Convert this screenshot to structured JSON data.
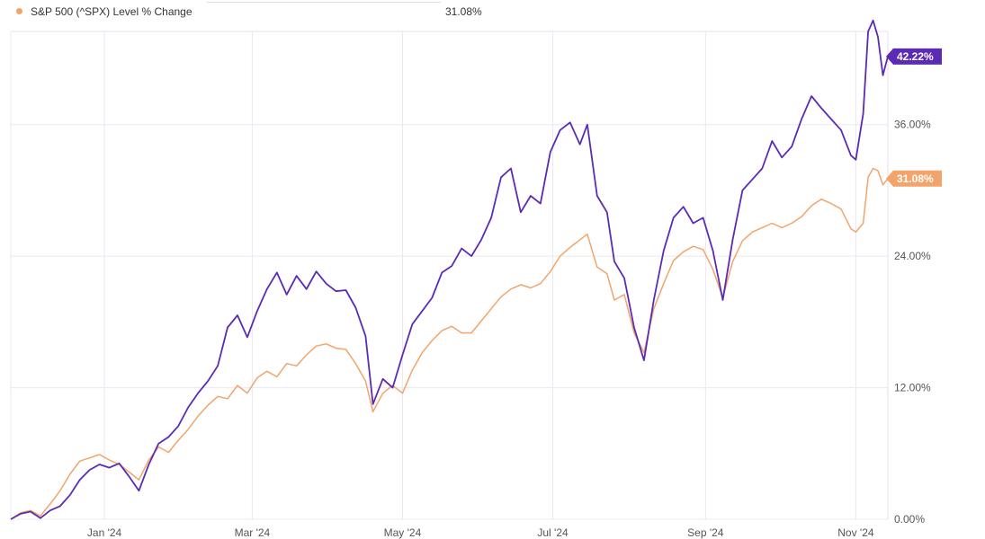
{
  "legend": {
    "label": "S&P 500 (^SPX) Level % Change",
    "value": "31.08%"
  },
  "chart_data": {
    "type": "line",
    "ylim": [
      0,
      44.5
    ],
    "y_ticks": [
      {
        "value": 0,
        "label": "0.00%"
      },
      {
        "value": 12,
        "label": "12.00%"
      },
      {
        "value": 24,
        "label": "24.00%"
      },
      {
        "value": 36,
        "label": "36.00%"
      }
    ],
    "x_range": [
      "2023-11-24",
      "2024-11-14"
    ],
    "x_ticks": [
      {
        "date": "2024-01-01",
        "label": "Jan '24"
      },
      {
        "date": "2024-03-01",
        "label": "Mar '24"
      },
      {
        "date": "2024-05-01",
        "label": "May '24"
      },
      {
        "date": "2024-07-01",
        "label": "Jul '24"
      },
      {
        "date": "2024-09-01",
        "label": "Sep '24"
      },
      {
        "date": "2024-11-01",
        "label": "Nov '24"
      }
    ],
    "grid": true,
    "series": [
      {
        "color": "#5b2bb5",
        "end_label": "42.22%",
        "points": [
          [
            "2023-11-24",
            0.0
          ],
          [
            "2023-11-28",
            0.5
          ],
          [
            "2023-12-02",
            0.7
          ],
          [
            "2023-12-06",
            0.1
          ],
          [
            "2023-12-10",
            0.8
          ],
          [
            "2023-12-14",
            1.2
          ],
          [
            "2023-12-18",
            2.2
          ],
          [
            "2023-12-22",
            3.6
          ],
          [
            "2023-12-26",
            4.5
          ],
          [
            "2023-12-30",
            5.0
          ],
          [
            "2024-01-03",
            4.7
          ],
          [
            "2024-01-07",
            5.1
          ],
          [
            "2024-01-11",
            3.9
          ],
          [
            "2024-01-15",
            2.6
          ],
          [
            "2024-01-19",
            5.0
          ],
          [
            "2024-01-23",
            6.9
          ],
          [
            "2024-01-27",
            7.5
          ],
          [
            "2024-01-31",
            8.5
          ],
          [
            "2024-02-04",
            10.2
          ],
          [
            "2024-02-08",
            11.5
          ],
          [
            "2024-02-12",
            12.6
          ],
          [
            "2024-02-16",
            14.0
          ],
          [
            "2024-02-20",
            17.5
          ],
          [
            "2024-02-24",
            18.6
          ],
          [
            "2024-02-28",
            16.6
          ],
          [
            "2024-03-03",
            19.0
          ],
          [
            "2024-03-07",
            21.0
          ],
          [
            "2024-03-11",
            22.5
          ],
          [
            "2024-03-15",
            20.5
          ],
          [
            "2024-03-19",
            22.2
          ],
          [
            "2024-03-23",
            21.0
          ],
          [
            "2024-03-27",
            22.6
          ],
          [
            "2024-03-31",
            21.5
          ],
          [
            "2024-04-04",
            20.8
          ],
          [
            "2024-04-08",
            20.9
          ],
          [
            "2024-04-12",
            19.3
          ],
          [
            "2024-04-16",
            16.7
          ],
          [
            "2024-04-19",
            10.5
          ],
          [
            "2024-04-23",
            12.8
          ],
          [
            "2024-04-27",
            12.0
          ],
          [
            "2024-05-01",
            15.0
          ],
          [
            "2024-05-05",
            17.8
          ],
          [
            "2024-05-09",
            19.0
          ],
          [
            "2024-05-13",
            20.2
          ],
          [
            "2024-05-17",
            22.5
          ],
          [
            "2024-05-21",
            23.1
          ],
          [
            "2024-05-25",
            24.7
          ],
          [
            "2024-05-29",
            24.0
          ],
          [
            "2024-06-02",
            25.5
          ],
          [
            "2024-06-06",
            27.5
          ],
          [
            "2024-06-10",
            31.2
          ],
          [
            "2024-06-14",
            32.0
          ],
          [
            "2024-06-18",
            28.0
          ],
          [
            "2024-06-22",
            29.5
          ],
          [
            "2024-06-26",
            28.8
          ],
          [
            "2024-06-30",
            33.5
          ],
          [
            "2024-07-04",
            35.5
          ],
          [
            "2024-07-08",
            36.2
          ],
          [
            "2024-07-12",
            34.2
          ],
          [
            "2024-07-15",
            36.0
          ],
          [
            "2024-07-19",
            29.5
          ],
          [
            "2024-07-23",
            28.0
          ],
          [
            "2024-07-26",
            23.5
          ],
          [
            "2024-07-30",
            22.0
          ],
          [
            "2024-08-03",
            17.5
          ],
          [
            "2024-08-07",
            14.5
          ],
          [
            "2024-08-11",
            20.0
          ],
          [
            "2024-08-15",
            24.5
          ],
          [
            "2024-08-19",
            27.5
          ],
          [
            "2024-08-23",
            28.5
          ],
          [
            "2024-08-27",
            27.0
          ],
          [
            "2024-08-31",
            27.5
          ],
          [
            "2024-09-04",
            24.5
          ],
          [
            "2024-09-08",
            20.0
          ],
          [
            "2024-09-12",
            25.5
          ],
          [
            "2024-09-16",
            30.0
          ],
          [
            "2024-09-20",
            31.0
          ],
          [
            "2024-09-24",
            32.0
          ],
          [
            "2024-09-28",
            34.5
          ],
          [
            "2024-10-02",
            33.0
          ],
          [
            "2024-10-06",
            34.0
          ],
          [
            "2024-10-10",
            36.5
          ],
          [
            "2024-10-14",
            38.6
          ],
          [
            "2024-10-18",
            37.5
          ],
          [
            "2024-10-22",
            36.5
          ],
          [
            "2024-10-26",
            35.5
          ],
          [
            "2024-10-30",
            33.2
          ],
          [
            "2024-11-01",
            32.8
          ],
          [
            "2024-11-04",
            37.0
          ],
          [
            "2024-11-06",
            44.5
          ],
          [
            "2024-11-08",
            45.5
          ],
          [
            "2024-11-10",
            44.0
          ],
          [
            "2024-11-12",
            40.5
          ],
          [
            "2024-11-14",
            42.22
          ]
        ]
      },
      {
        "color": "#f2a46a",
        "end_label": "31.08%",
        "points": [
          [
            "2023-11-24",
            0.0
          ],
          [
            "2023-11-28",
            0.6
          ],
          [
            "2023-12-02",
            0.8
          ],
          [
            "2023-12-06",
            0.3
          ],
          [
            "2023-12-10",
            1.4
          ],
          [
            "2023-12-14",
            2.6
          ],
          [
            "2023-12-18",
            4.1
          ],
          [
            "2023-12-22",
            5.3
          ],
          [
            "2023-12-26",
            5.6
          ],
          [
            "2023-12-30",
            5.9
          ],
          [
            "2024-01-03",
            5.4
          ],
          [
            "2024-01-07",
            5.0
          ],
          [
            "2024-01-11",
            4.3
          ],
          [
            "2024-01-15",
            3.6
          ],
          [
            "2024-01-19",
            5.4
          ],
          [
            "2024-01-23",
            6.6
          ],
          [
            "2024-01-27",
            6.1
          ],
          [
            "2024-01-31",
            7.2
          ],
          [
            "2024-02-04",
            8.2
          ],
          [
            "2024-02-08",
            9.4
          ],
          [
            "2024-02-12",
            10.4
          ],
          [
            "2024-02-16",
            11.2
          ],
          [
            "2024-02-20",
            11.0
          ],
          [
            "2024-02-24",
            12.2
          ],
          [
            "2024-02-28",
            11.5
          ],
          [
            "2024-03-03",
            12.9
          ],
          [
            "2024-03-07",
            13.5
          ],
          [
            "2024-03-11",
            13.0
          ],
          [
            "2024-03-15",
            14.2
          ],
          [
            "2024-03-19",
            14.0
          ],
          [
            "2024-03-23",
            15.0
          ],
          [
            "2024-03-27",
            15.8
          ],
          [
            "2024-03-31",
            16.0
          ],
          [
            "2024-04-04",
            15.6
          ],
          [
            "2024-04-08",
            15.5
          ],
          [
            "2024-04-12",
            14.2
          ],
          [
            "2024-04-16",
            12.6
          ],
          [
            "2024-04-19",
            9.8
          ],
          [
            "2024-04-23",
            11.5
          ],
          [
            "2024-04-27",
            12.2
          ],
          [
            "2024-05-01",
            11.5
          ],
          [
            "2024-05-05",
            13.6
          ],
          [
            "2024-05-09",
            15.2
          ],
          [
            "2024-05-13",
            16.3
          ],
          [
            "2024-05-17",
            17.2
          ],
          [
            "2024-05-21",
            17.6
          ],
          [
            "2024-05-25",
            17.0
          ],
          [
            "2024-05-29",
            17.0
          ],
          [
            "2024-06-02",
            18.1
          ],
          [
            "2024-06-06",
            19.2
          ],
          [
            "2024-06-10",
            20.3
          ],
          [
            "2024-06-14",
            21.0
          ],
          [
            "2024-06-18",
            21.4
          ],
          [
            "2024-06-22",
            21.1
          ],
          [
            "2024-06-26",
            21.5
          ],
          [
            "2024-06-30",
            22.6
          ],
          [
            "2024-07-04",
            24.0
          ],
          [
            "2024-07-08",
            24.8
          ],
          [
            "2024-07-12",
            25.5
          ],
          [
            "2024-07-15",
            26.0
          ],
          [
            "2024-07-19",
            23.0
          ],
          [
            "2024-07-23",
            22.4
          ],
          [
            "2024-07-26",
            20.0
          ],
          [
            "2024-07-30",
            20.5
          ],
          [
            "2024-08-03",
            17.0
          ],
          [
            "2024-08-07",
            15.2
          ],
          [
            "2024-08-11",
            19.2
          ],
          [
            "2024-08-15",
            21.5
          ],
          [
            "2024-08-19",
            23.6
          ],
          [
            "2024-08-23",
            24.4
          ],
          [
            "2024-08-27",
            24.9
          ],
          [
            "2024-08-31",
            24.6
          ],
          [
            "2024-09-04",
            22.8
          ],
          [
            "2024-09-08",
            20.2
          ],
          [
            "2024-09-12",
            23.5
          ],
          [
            "2024-09-16",
            25.4
          ],
          [
            "2024-09-20",
            26.2
          ],
          [
            "2024-09-24",
            26.6
          ],
          [
            "2024-09-28",
            27.0
          ],
          [
            "2024-10-02",
            26.6
          ],
          [
            "2024-10-06",
            27.0
          ],
          [
            "2024-10-10",
            27.6
          ],
          [
            "2024-10-14",
            28.6
          ],
          [
            "2024-10-18",
            29.2
          ],
          [
            "2024-10-22",
            28.8
          ],
          [
            "2024-10-26",
            28.3
          ],
          [
            "2024-10-30",
            26.5
          ],
          [
            "2024-11-01",
            26.2
          ],
          [
            "2024-11-04",
            27.0
          ],
          [
            "2024-11-06",
            31.2
          ],
          [
            "2024-11-08",
            32.0
          ],
          [
            "2024-11-10",
            31.8
          ],
          [
            "2024-11-12",
            30.5
          ],
          [
            "2024-11-14",
            31.08
          ]
        ]
      }
    ]
  }
}
